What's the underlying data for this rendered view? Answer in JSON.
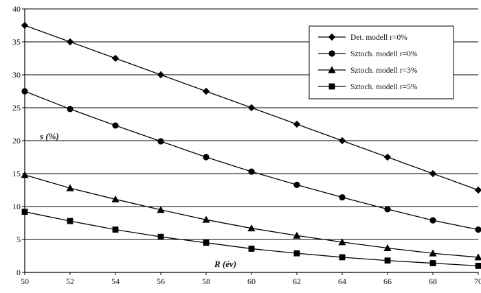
{
  "chart_data": {
    "type": "line",
    "title": "",
    "xlabel": "R (év)",
    "ylabel": "s (%)",
    "xlim": [
      50,
      70
    ],
    "ylim": [
      0,
      40
    ],
    "x_ticks": [
      50,
      52,
      54,
      56,
      58,
      60,
      62,
      64,
      66,
      68,
      70
    ],
    "y_ticks": [
      0,
      5,
      10,
      15,
      20,
      25,
      30,
      35,
      40
    ],
    "grid": "horizontal",
    "legend_position": "top-right",
    "x": [
      50,
      52,
      54,
      56,
      58,
      60,
      62,
      64,
      66,
      68,
      70
    ],
    "series": [
      {
        "name": "Det. modell r=0%",
        "marker": "diamond",
        "values": [
          37.5,
          35,
          32.5,
          30,
          27.5,
          25,
          22.5,
          20,
          17.5,
          15,
          12.5
        ]
      },
      {
        "name": "Sztoch. modell r=0%",
        "marker": "circle",
        "values": [
          27.5,
          24.8,
          22.3,
          19.9,
          17.5,
          15.3,
          13.3,
          11.4,
          9.6,
          7.9,
          6.5
        ]
      },
      {
        "name": "Sztoch. modell r=3%",
        "marker": "triangle",
        "values": [
          14.8,
          12.8,
          11.1,
          9.5,
          8.0,
          6.7,
          5.6,
          4.6,
          3.7,
          2.9,
          2.3
        ]
      },
      {
        "name": "Sztoch. modell r=5%",
        "marker": "square",
        "values": [
          9.2,
          7.8,
          6.5,
          5.4,
          4.5,
          3.6,
          2.9,
          2.3,
          1.8,
          1.4,
          1.0
        ]
      }
    ]
  }
}
